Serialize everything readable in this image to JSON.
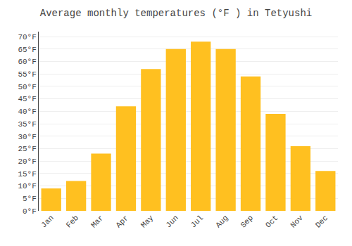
{
  "chart_data": {
    "type": "bar",
    "title": "Average monthly temperatures (°F ) in Tetyushi",
    "categories": [
      "Jan",
      "Feb",
      "Mar",
      "Apr",
      "May",
      "Jun",
      "Jul",
      "Aug",
      "Sep",
      "Oct",
      "Nov",
      "Dec"
    ],
    "values": [
      9,
      12,
      23,
      42,
      57,
      65,
      68,
      65,
      54,
      39,
      26,
      16
    ],
    "color": "#FFC020",
    "ylim": [
      0,
      72
    ],
    "yticks": [
      {
        "value": 0,
        "label": "0°F"
      },
      {
        "value": 5,
        "label": "5°F"
      },
      {
        "value": 10,
        "label": "10°F"
      },
      {
        "value": 15,
        "label": "15°F"
      },
      {
        "value": 20,
        "label": "20°F"
      },
      {
        "value": 25,
        "label": "25°F"
      },
      {
        "value": 30,
        "label": "30°F"
      },
      {
        "value": 35,
        "label": "35°F"
      },
      {
        "value": 40,
        "label": "40°F"
      },
      {
        "value": 45,
        "label": "45°F"
      },
      {
        "value": 50,
        "label": "50°F"
      },
      {
        "value": 55,
        "label": "55°F"
      },
      {
        "value": 60,
        "label": "60°F"
      },
      {
        "value": 65,
        "label": "65°F"
      },
      {
        "value": 70,
        "label": "70°F"
      }
    ],
    "grid": true
  }
}
